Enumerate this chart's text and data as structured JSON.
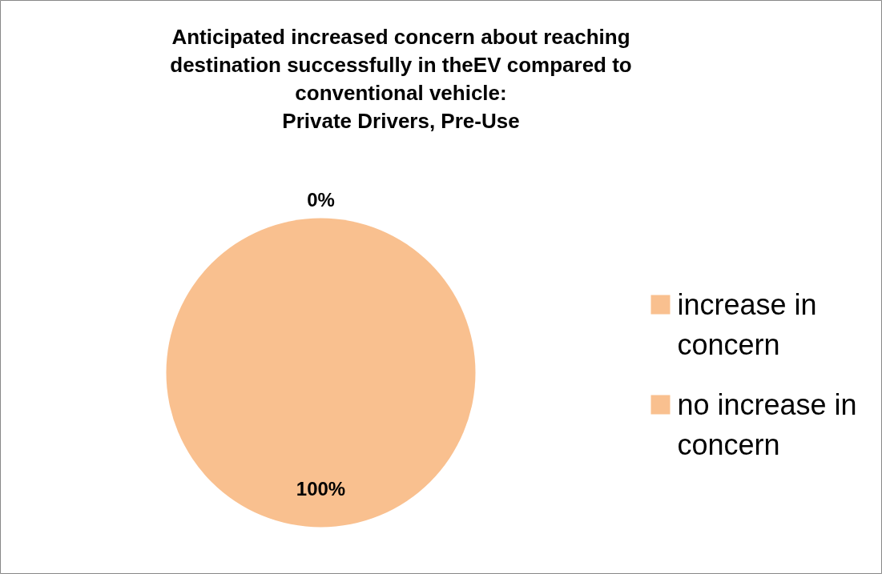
{
  "chart_data": {
    "type": "pie",
    "title": "Anticipated increased concern about reaching destination successfully in theEV compared to conventional vehicle:",
    "subtitle": "Private Drivers, Pre-Use",
    "categories": [
      "increase in concern",
      "no increase in concern"
    ],
    "values": [
      0,
      100
    ],
    "colors": [
      "#f9c08f",
      "#f9c08f"
    ],
    "value_labels": [
      "0%",
      "100%"
    ],
    "legend": "right"
  }
}
